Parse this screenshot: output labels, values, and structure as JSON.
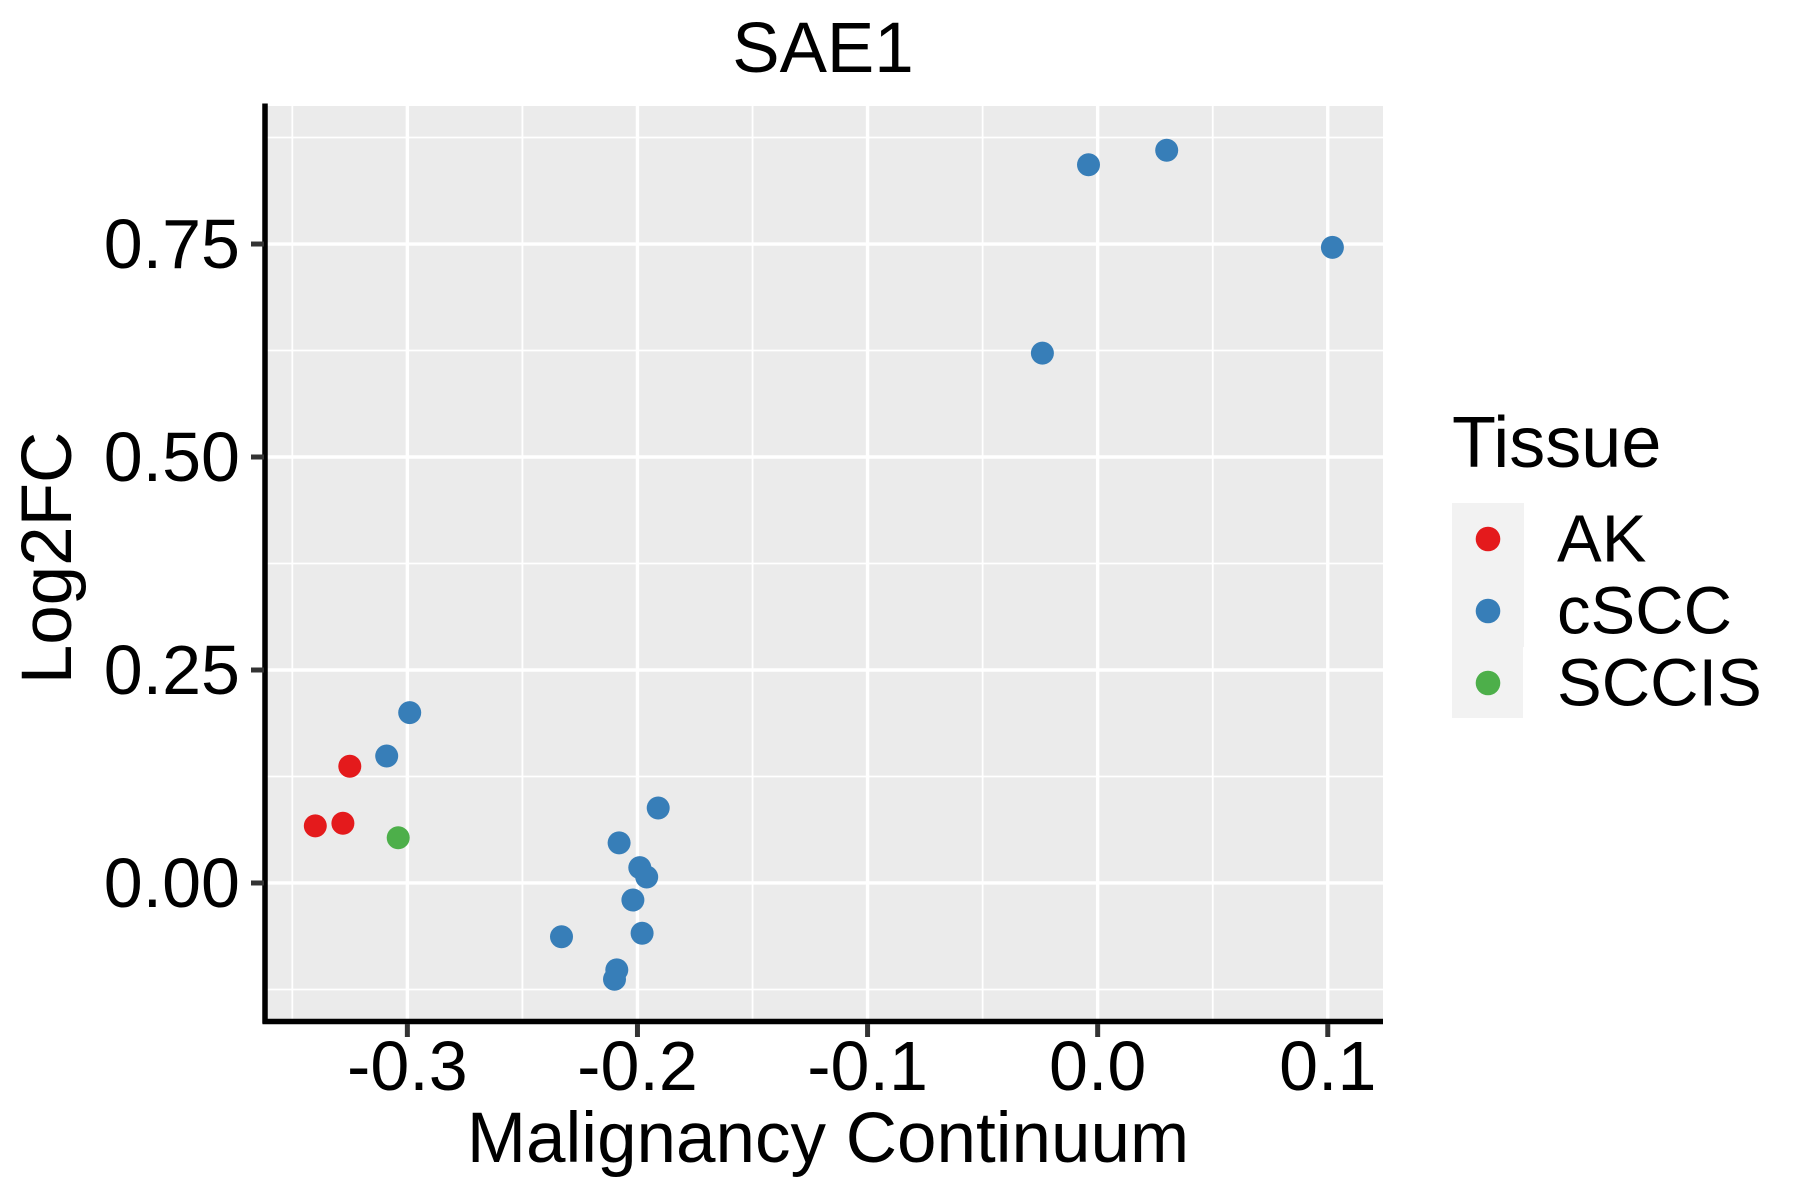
{
  "chart_data": {
    "type": "scatter",
    "title": "SAE1",
    "xlabel": "Malignancy Continuum",
    "ylabel": "Log2FC",
    "legend_title": "Tissue",
    "legend_position": "right",
    "grid": true,
    "panel_bg": "#EBEBEB",
    "grid_color": "#FFFFFF",
    "legend_key_bg": "#F2F2F2",
    "axis_color": "#000000",
    "tick_color": "#333333",
    "text_color": "#000000",
    "xlim": [
      -0.361,
      0.124
    ],
    "ylim": [
      -0.162,
      0.912
    ],
    "x_ticks": [
      -0.3,
      -0.2,
      -0.1,
      0.0,
      0.1
    ],
    "x_tick_labels": [
      "-0.3",
      "-0.2",
      "-0.1",
      "0.0",
      "0.1"
    ],
    "x_minor_ticks": [
      -0.35,
      -0.25,
      -0.15,
      -0.05,
      0.05
    ],
    "y_ticks": [
      0.0,
      0.25,
      0.5,
      0.75
    ],
    "y_tick_labels": [
      "0.00",
      "0.25",
      "0.50",
      "0.75"
    ],
    "y_minor_ticks": [
      -0.125,
      0.125,
      0.375,
      0.625,
      0.875
    ],
    "point_radius_px": 11.5,
    "series": [
      {
        "name": "AK",
        "color": "#E41A1C",
        "points": [
          [
            -0.325,
            0.137
          ],
          [
            -0.34,
            0.067
          ],
          [
            -0.328,
            0.07
          ]
        ]
      },
      {
        "name": "cSCC",
        "color": "#377EB8",
        "points": [
          [
            -0.299,
            0.2
          ],
          [
            -0.309,
            0.149
          ],
          [
            -0.191,
            0.088
          ],
          [
            -0.208,
            0.047
          ],
          [
            -0.199,
            0.018
          ],
          [
            -0.196,
            0.007
          ],
          [
            -0.202,
            -0.02
          ],
          [
            -0.198,
            -0.059
          ],
          [
            -0.233,
            -0.063
          ],
          [
            -0.209,
            -0.102
          ],
          [
            -0.21,
            -0.113
          ],
          [
            -0.004,
            0.843
          ],
          [
            0.03,
            0.86
          ],
          [
            0.102,
            0.746
          ],
          [
            -0.024,
            0.622
          ]
        ]
      },
      {
        "name": "SCCIS",
        "color": "#4DAF4A",
        "points": [
          [
            -0.304,
            0.053
          ]
        ]
      }
    ]
  }
}
